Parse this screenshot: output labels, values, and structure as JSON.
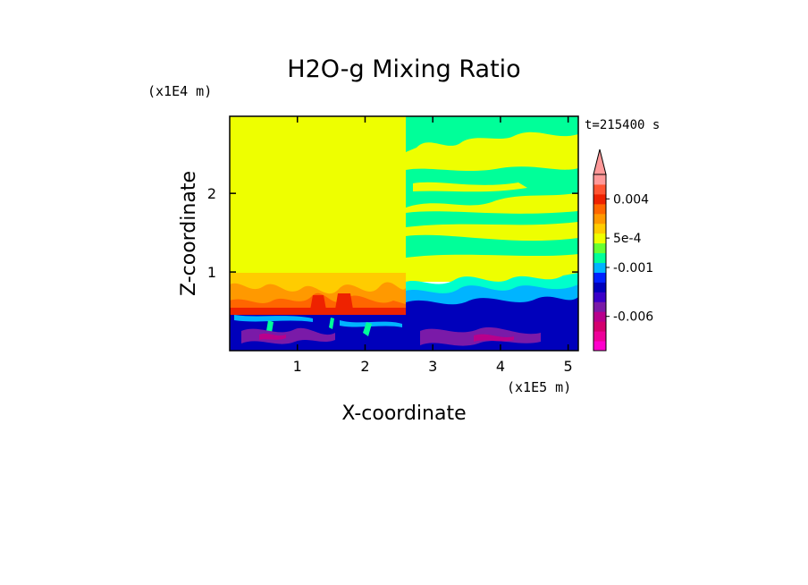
{
  "chart_data": {
    "type": "heatmap",
    "title": "H2O-g Mixing Ratio",
    "xlabel": "X-coordinate",
    "ylabel": "Z-coordinate",
    "x_unit": "(x1E5 m)",
    "y_unit": "(x1E4 m)",
    "time_label": "t=215400 s",
    "xlim": [
      0,
      5.15
    ],
    "ylim": [
      0,
      2.98
    ],
    "x_ticks": [
      1,
      2,
      3,
      4,
      5
    ],
    "x_tick_labels": [
      "1",
      "2",
      "3",
      "4",
      "5"
    ],
    "y_ticks": [
      1,
      2
    ],
    "y_tick_labels": [
      "1",
      "2"
    ],
    "colorbar": {
      "levels": [
        -0.009,
        -0.008,
        -0.007,
        -0.006,
        -0.005,
        -0.004,
        -0.003,
        -0.002,
        -0.001,
        -0.0005,
        0,
        0.0005,
        0.001,
        0.002,
        0.003,
        0.004,
        0.005,
        0.006
      ],
      "colors": [
        "#ff00cc",
        "#ee0099",
        "#d4006e",
        "#b8008c",
        "#7a1aa8",
        "#3a00c8",
        "#0000bb",
        "#0022ff",
        "#00b4ff",
        "#00ff99",
        "#66ff33",
        "#eeff00",
        "#ffcc00",
        "#ff9900",
        "#ff6600",
        "#ee2200",
        "#ff5533",
        "#ff9999"
      ],
      "tick_values": [
        0.004,
        0.0005,
        -0.001,
        -0.006
      ],
      "tick_labels": [
        "0.004",
        "5e-4",
        "-0.001",
        "-0.006"
      ],
      "extend": "max"
    },
    "colors": {
      "background_left": "#eeff00",
      "background_right": "#eeff00"
    }
  }
}
